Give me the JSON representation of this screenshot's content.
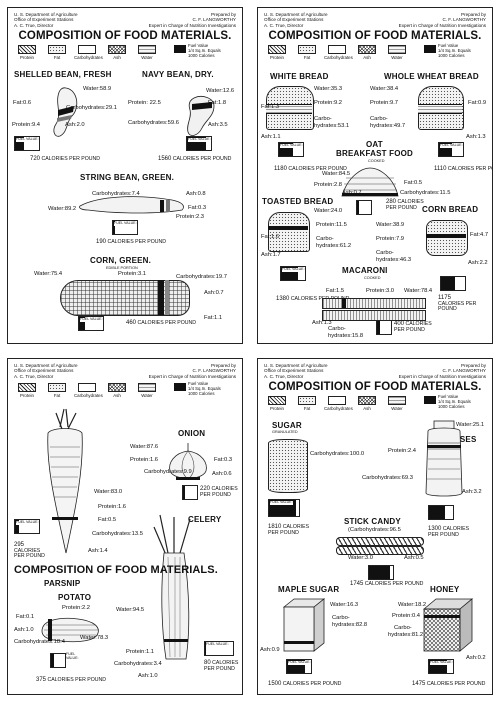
{
  "common": {
    "dept": "U. S. Department of Agriculture",
    "office": "Office of Experiment Stations",
    "director": "A. C. True, Director",
    "prepared_by": "Prepared by",
    "preparer": "C. F. LANGWORTHY",
    "preparer_title": "Expert in Charge of Nutrition Investigations",
    "title": "COMPOSITION OF FOOD MATERIALS.",
    "legend": [
      "Protein",
      "Fat",
      "Carbohydrates",
      "Ash",
      "Water"
    ],
    "fuel_legend": "Fuel Value\n1/4 Sq.In. Equals\n1000 Calories",
    "fuel_value_label": "FUEL VALUE:",
    "calories_unit": "CALORIES PER POUND"
  },
  "panel1": {
    "shelled_bean": {
      "name": "SHELLED BEAN, FRESH",
      "water": "Water:58.9",
      "fat": "Fat:0.6",
      "carbs": "Carbohydrates:29.1",
      "protein": "Protein:9.4",
      "ash": "Ash:2.0",
      "calories": "720",
      "fuel": 0.72
    },
    "navy_bean": {
      "name": "NAVY BEAN, DRY.",
      "water": "Water:12.6",
      "fat": "Fat:1.8",
      "protein": "Protein: 22.5",
      "carbs": "Carbohydrates:59.6",
      "ash": "Ash:3.5",
      "calories": "1560",
      "fuel": 1.56
    },
    "string_bean": {
      "name": "STRING BEAN, GREEN.",
      "carbs": "Carbohydrates:7.4",
      "ash": "Ash:0.8",
      "water": "Water:89.2",
      "fat": "Fat:0.3",
      "protein": "Protein:2.3",
      "calories": "190",
      "fuel": 0.19
    },
    "corn": {
      "name": "CORN, GREEN.",
      "sub": "EDIBLE PORTION",
      "water": "Water:75.4",
      "protein": "Protein:3.1",
      "carbs": "Carbohydrates:19.7",
      "ash": "Ash:0.7",
      "fat": "Fat:1.1",
      "calories": "460",
      "fuel": 0.46
    }
  },
  "panel2": {
    "white_bread": {
      "name": "WHITE BREAD",
      "water": "Water:35.3",
      "fat": "Fat:1.3",
      "protein": "Protein:9.2",
      "carbs_a": "Carbo-",
      "carbs_b": "hydrates:53.1",
      "ash": "Ash:1.1",
      "calories": "1180",
      "fuel": 1.18
    },
    "whole_wheat": {
      "name": "WHOLE WHEAT BREAD",
      "water": "Water:38.4",
      "protein": "Protein:9.7",
      "fat": "Fat:0.9",
      "carbs_a": "Carbo-",
      "carbs_b": "hydrates:49.7",
      "ash": "Ash:1.3",
      "calories": "1110",
      "fuel": 1.11
    },
    "oat": {
      "name": "OAT",
      "name2": "BREAKFAST FOOD",
      "sub": "COOKED",
      "water": "Water:84.5",
      "protein": "Protein:2.8",
      "fat": "Fat:0.5",
      "carbs": "Carbohydrates:11.5",
      "ash": "Ash:0.7",
      "calories": "280",
      "fuel": 0.28
    },
    "toasted": {
      "name": "TOASTED BREAD",
      "water": "Water:24.0",
      "fat": "Fat:1.6",
      "protein": "Protein:11.5",
      "carbs_a": "Carbo-",
      "carbs_b": "hydrates:61.2",
      "ash": "Ash:1.7",
      "calories": "1380",
      "fuel": 1.38
    },
    "cornbread": {
      "name": "CORN BREAD",
      "water": "Water:38.9",
      "protein": "Protein:7.9",
      "fat": "Fat:4.7",
      "carbs_a": "Carbo-",
      "carbs_b": "hydrates:46.3",
      "ash": "Ash:2.2",
      "calories": "1175",
      "fuel": 1.175
    },
    "macaroni": {
      "name": "MACARONI",
      "sub": "COOKED",
      "fat": "Fat:1.5",
      "protein": "Protein:3.0",
      "water": "Water:78.4",
      "ash": "Ash:1.3",
      "carbs_a": "Carbo-",
      "carbs_b": "hydrates:15.8",
      "calories": "400",
      "fuel": 0.4
    }
  },
  "panel3": {
    "onion": {
      "name": "ONION",
      "water": "Water:87.6",
      "protein": "Protein:1.6",
      "fat": "Fat:0.3",
      "carbs": "Carbohydrates:9.9",
      "ash": "Ash:0.6",
      "calories": "220",
      "fuel": 0.22
    },
    "parsnip": {
      "name": "PARSNIP",
      "water": "Water:83.0",
      "protein": "Protein:1.6",
      "fat": "Fat:0.5",
      "carbs": "Carbohydrates:13.5",
      "ash": "Ash:1.4",
      "calories": "295",
      "fuel": 0.295
    },
    "celery": {
      "name": "CELERY",
      "water": "Water:94.5",
      "protein": "Protein:1.1",
      "carbs": "Carbohydrates:3.4",
      "ash": "Ash:1.0",
      "calories": "80",
      "fuel": 0.08
    },
    "potato": {
      "name": "POTATO",
      "protein": "Protein:2.2",
      "fat": "Fat:0.1",
      "ash": "Ash:1.0",
      "water": "Water:78.3",
      "carbs": "Carbohydrates:18.4",
      "calories": "375",
      "fuel": 0.375
    }
  },
  "panel4": {
    "sugar": {
      "name": "SUGAR",
      "sub": "GRANULATED",
      "carbs": "Carbohydrates:100.0",
      "calories": "1810",
      "fuel": 1.81
    },
    "molasses": {
      "name": "MOLASSES",
      "water": "Water:25.1",
      "protein": "Protein:2.4",
      "carbs": "Carbohydrates:69.3",
      "ash": "Ash:3.2",
      "calories": "1300",
      "fuel": 1.3
    },
    "candy": {
      "name": "STICK CANDY",
      "carbs": "(Carbohydrates:96.5",
      "water": "Water:3.0",
      "ash": "Ash:0.5",
      "calories": "1745",
      "fuel": 1.745
    },
    "maple": {
      "name": "MAPLE SUGAR",
      "water": "Water:16.3",
      "carbs_a": "Carbo-",
      "carbs_b": "hydrates:82.8",
      "ash": "Ash:0.9",
      "calories": "1500",
      "fuel": 1.5
    },
    "honey": {
      "name": "HONEY",
      "water": "Water:18.2",
      "protein": "Protein:0.4",
      "carbs_a": "Carbo-",
      "carbs_b": "hydrates:81.2",
      "ash": "Ash:0.2",
      "calories": "1475",
      "fuel": 1.475
    }
  }
}
